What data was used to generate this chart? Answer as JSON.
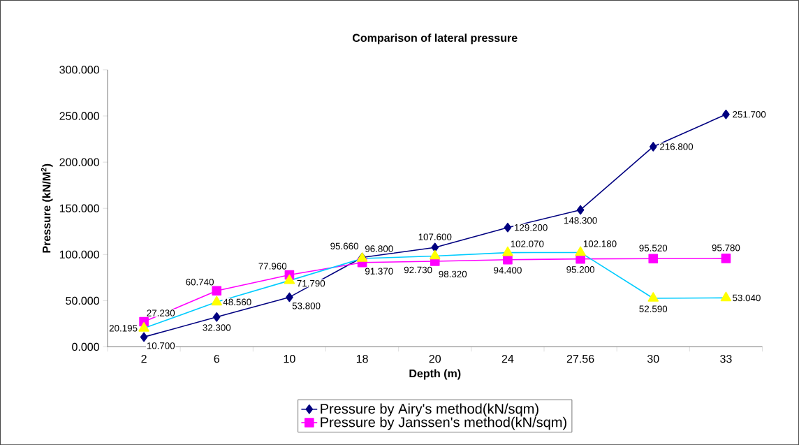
{
  "chart_data": {
    "type": "line",
    "title": "Comparison of lateral pressure",
    "xlabel": "Depth (m)",
    "ylabel": "Pressure (kN/M$^{2}$)",
    "categories": [
      "2",
      "6",
      "10",
      "18",
      "20",
      "24",
      "27.56",
      "30",
      "33"
    ],
    "ylim": [
      0,
      300
    ],
    "yticks": [
      {
        "value": 0,
        "label": "0.000"
      },
      {
        "value": 50,
        "label": "50.000"
      },
      {
        "value": 100,
        "label": "100.000"
      },
      {
        "value": 150,
        "label": "150.000"
      },
      {
        "value": 200,
        "label": "200.000"
      },
      {
        "value": 250,
        "label": "250.000"
      },
      {
        "value": 300,
        "label": "300.000"
      }
    ],
    "legend": "bottom",
    "grid": false,
    "series": [
      {
        "name": "Pressure by Airy's method(kN/sqm)",
        "color": "#000080",
        "marker": "diamond",
        "values": [
          10.7,
          32.3,
          53.8,
          96.8,
          107.6,
          129.2,
          148.3,
          216.8,
          251.7
        ],
        "value_labels": [
          "10.700",
          "32.300",
          "53.800",
          "96.800",
          "107.600",
          "129.200",
          "148.300",
          "216.800",
          "251.700"
        ]
      },
      {
        "name": "Pressure by Janssen's method(kN/sqm)",
        "color": "#ff00ff",
        "marker": "square",
        "values": [
          27.23,
          60.74,
          77.96,
          91.37,
          92.73,
          94.4,
          95.2,
          95.52,
          95.78
        ],
        "value_labels": [
          "27.230",
          "60.740",
          "77.960",
          "91.370",
          "92.730",
          "94.400",
          "95.200",
          "95.520",
          "95.780"
        ]
      },
      {
        "color": "#00ccff",
        "colors": [
          "#ffff00",
          "#ffff00",
          "#ffff00",
          "#ffff00",
          "#ffff00",
          "#ffff00",
          "#ffff00",
          "#ffff00",
          "#ffff00"
        ],
        "marker": "triangle",
        "values": [
          20.195,
          48.56,
          71.79,
          95.66,
          98.32,
          102.07,
          102.18,
          52.59,
          53.04
        ],
        "value_labels": [
          "20.195",
          "48.560",
          "71.790",
          "95.660",
          "98.320",
          "102.070",
          "102.180",
          "52.590",
          "53.040"
        ]
      }
    ]
  }
}
